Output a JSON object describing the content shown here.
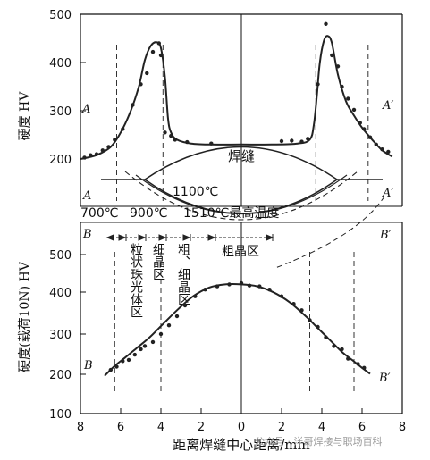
{
  "chart_data": [
    {
      "type": "scatter",
      "ylabel": "硬度 HV",
      "ylim": [
        150,
        500
      ],
      "yticks": [
        200,
        300,
        400,
        500
      ],
      "xlim": [
        -8,
        8
      ],
      "curve_labels": {
        "left": "A",
        "right": "A′"
      },
      "curve": [
        [
          -8.0,
          200
        ],
        [
          -7.2,
          208
        ],
        [
          -6.5,
          225
        ],
        [
          -6.0,
          255
        ],
        [
          -5.5,
          300
        ],
        [
          -5.1,
          350
        ],
        [
          -4.8,
          405
        ],
        [
          -4.5,
          435
        ],
        [
          -4.2,
          442
        ],
        [
          -4.0,
          430
        ],
        [
          -3.8,
          370
        ],
        [
          -3.65,
          285
        ],
        [
          -3.5,
          255
        ],
        [
          -3.2,
          240
        ],
        [
          -2.5,
          232
        ],
        [
          -1.5,
          230
        ],
        [
          0.0,
          230
        ],
        [
          1.5,
          230
        ],
        [
          2.8,
          232
        ],
        [
          3.4,
          240
        ],
        [
          3.6,
          270
        ],
        [
          3.75,
          330
        ],
        [
          3.9,
          400
        ],
        [
          4.1,
          445
        ],
        [
          4.3,
          455
        ],
        [
          4.5,
          440
        ],
        [
          4.8,
          375
        ],
        [
          5.2,
          320
        ],
        [
          5.6,
          290
        ],
        [
          6.0,
          265
        ],
        [
          6.5,
          240
        ],
        [
          7.0,
          218
        ],
        [
          7.5,
          205
        ]
      ],
      "points": [
        [
          -7.8,
          203
        ],
        [
          -7.5,
          208
        ],
        [
          -7.2,
          210
        ],
        [
          -6.9,
          218
        ],
        [
          -6.6,
          225
        ],
        [
          -6.3,
          240
        ],
        [
          -5.9,
          262
        ],
        [
          -5.4,
          312
        ],
        [
          -5.0,
          355
        ],
        [
          -4.7,
          378
        ],
        [
          -4.4,
          422
        ],
        [
          -4.1,
          440
        ],
        [
          -4.0,
          415
        ],
        [
          -3.8,
          255
        ],
        [
          -3.5,
          248
        ],
        [
          -3.3,
          240
        ],
        [
          -2.7,
          235
        ],
        [
          -1.5,
          232
        ],
        [
          2.0,
          237
        ],
        [
          2.5,
          238
        ],
        [
          3.0,
          236
        ],
        [
          3.3,
          242
        ],
        [
          3.8,
          355
        ],
        [
          4.2,
          480
        ],
        [
          4.5,
          415
        ],
        [
          4.8,
          392
        ],
        [
          5.0,
          350
        ],
        [
          5.3,
          325
        ],
        [
          5.6,
          302
        ],
        [
          5.9,
          275
        ],
        [
          6.1,
          262
        ],
        [
          6.4,
          245
        ],
        [
          6.7,
          230
        ],
        [
          7.0,
          220
        ],
        [
          7.3,
          215
        ]
      ],
      "dashed_x": [
        -6.2,
        -3.9,
        3.7,
        6.3
      ]
    },
    {
      "type": "scatter",
      "ylabel": "硬度(载荷10N) HV",
      "ylim": [
        100,
        500
      ],
      "yticks": [
        100,
        200,
        300,
        400,
        500
      ],
      "xlim": [
        8,
        -8
      ],
      "xticks": [
        8,
        6,
        4,
        2,
        0,
        2,
        4,
        6,
        8
      ],
      "xlabel": "距离焊缝中心距离/mm",
      "curve_labels": {
        "left": "B",
        "right": "B′"
      },
      "curve": [
        [
          -6.8,
          195
        ],
        [
          -6.3,
          220
        ],
        [
          -5.8,
          240
        ],
        [
          -5.2,
          265
        ],
        [
          -4.6,
          290
        ],
        [
          -4.0,
          320
        ],
        [
          -3.2,
          360
        ],
        [
          -2.4,
          395
        ],
        [
          -1.6,
          417
        ],
        [
          -0.8,
          425
        ],
        [
          0.0,
          425
        ],
        [
          0.8,
          420
        ],
        [
          1.6,
          405
        ],
        [
          2.4,
          380
        ],
        [
          3.2,
          345
        ],
        [
          3.8,
          315
        ],
        [
          4.4,
          285
        ],
        [
          5.0,
          255
        ],
        [
          5.5,
          235
        ],
        [
          6.0,
          215
        ],
        [
          6.4,
          200
        ]
      ],
      "points": [
        [
          -6.5,
          210
        ],
        [
          -6.2,
          218
        ],
        [
          -5.9,
          232
        ],
        [
          -5.6,
          235
        ],
        [
          -5.3,
          248
        ],
        [
          -5.0,
          262
        ],
        [
          -4.8,
          270
        ],
        [
          -4.4,
          280
        ],
        [
          -4.0,
          300
        ],
        [
          -3.6,
          322
        ],
        [
          -3.2,
          345
        ],
        [
          -2.8,
          372
        ],
        [
          -2.3,
          395
        ],
        [
          -1.8,
          412
        ],
        [
          -1.2,
          420
        ],
        [
          -0.6,
          425
        ],
        [
          0.0,
          428
        ],
        [
          0.4,
          422
        ],
        [
          0.9,
          420
        ],
        [
          1.4,
          412
        ],
        [
          2.0,
          395
        ],
        [
          2.6,
          376
        ],
        [
          3.0,
          360
        ],
        [
          3.4,
          335
        ],
        [
          3.8,
          318
        ],
        [
          4.2,
          292
        ],
        [
          4.6,
          270
        ],
        [
          5.0,
          262
        ],
        [
          5.3,
          238
        ],
        [
          5.8,
          225
        ],
        [
          6.1,
          215
        ]
      ],
      "dashed_x": [
        -6.3,
        -4.0,
        3.4,
        5.6
      ]
    }
  ],
  "diagram": {
    "weld_label": "焊缝",
    "line_labels": {
      "a_left": "A",
      "a_right": "A′",
      "b_left": "B",
      "b_right": "B′"
    },
    "temps": [
      "700℃",
      "900℃",
      "1100℃",
      "1510℃最高温度"
    ],
    "zones": [
      "粒状珠光体区",
      "细晶区",
      "粗、细晶区",
      "粗晶区"
    ]
  },
  "watermark": "公众号 · 洋哥焊接与职场百科"
}
